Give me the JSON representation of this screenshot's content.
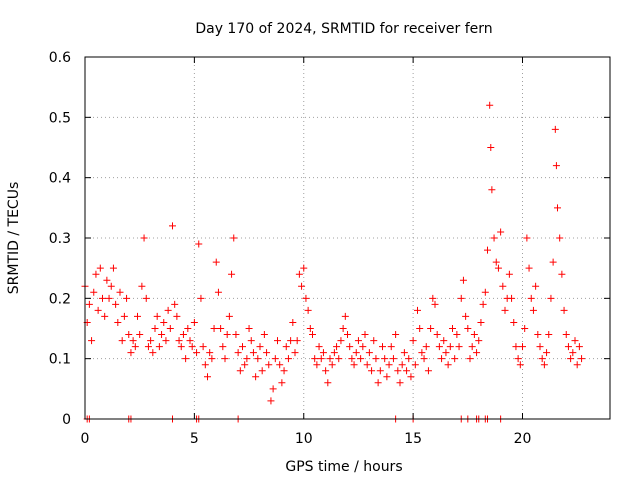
{
  "chart_data": {
    "type": "scatter",
    "title": "Day 170 of 2024, SRMTID for receiver fern",
    "xlabel": "GPS time / hours",
    "ylabel": "SRMTID / TECUs",
    "xlim": [
      0,
      24
    ],
    "ylim": [
      0,
      0.6
    ],
    "xticks": [
      0,
      5,
      10,
      15,
      20
    ],
    "yticks": [
      0,
      0.1,
      0.2,
      0.3,
      0.4,
      0.5,
      0.6
    ],
    "grid": true,
    "marker": "plus",
    "color": "#ff0000",
    "series": [
      {
        "name": "SRMTID",
        "points": [
          [
            0.0,
            0.22
          ],
          [
            0.1,
            0.16
          ],
          [
            0.2,
            0.19
          ],
          [
            0.3,
            0.13
          ],
          [
            0.4,
            0.21
          ],
          [
            0.5,
            0.24
          ],
          [
            0.6,
            0.18
          ],
          [
            0.7,
            0.25
          ],
          [
            0.8,
            0.2
          ],
          [
            0.9,
            0.17
          ],
          [
            1.0,
            0.23
          ],
          [
            1.1,
            0.2
          ],
          [
            1.2,
            0.22
          ],
          [
            1.3,
            0.25
          ],
          [
            1.4,
            0.19
          ],
          [
            1.5,
            0.16
          ],
          [
            1.6,
            0.21
          ],
          [
            1.7,
            0.13
          ],
          [
            1.8,
            0.17
          ],
          [
            1.9,
            0.2
          ],
          [
            2.0,
            0.14
          ],
          [
            2.1,
            0.11
          ],
          [
            2.2,
            0.13
          ],
          [
            2.3,
            0.12
          ],
          [
            2.4,
            0.17
          ],
          [
            2.5,
            0.14
          ],
          [
            2.6,
            0.22
          ],
          [
            2.7,
            0.3
          ],
          [
            2.8,
            0.2
          ],
          [
            2.9,
            0.12
          ],
          [
            3.0,
            0.13
          ],
          [
            3.1,
            0.11
          ],
          [
            3.2,
            0.15
          ],
          [
            3.3,
            0.17
          ],
          [
            3.4,
            0.12
          ],
          [
            3.5,
            0.14
          ],
          [
            3.6,
            0.16
          ],
          [
            3.7,
            0.13
          ],
          [
            3.8,
            0.18
          ],
          [
            3.9,
            0.15
          ],
          [
            4.0,
            0.32
          ],
          [
            4.1,
            0.19
          ],
          [
            4.2,
            0.17
          ],
          [
            4.3,
            0.13
          ],
          [
            4.4,
            0.12
          ],
          [
            4.5,
            0.14
          ],
          [
            4.6,
            0.1
          ],
          [
            4.7,
            0.15
          ],
          [
            4.8,
            0.13
          ],
          [
            4.9,
            0.12
          ],
          [
            5.0,
            0.16
          ],
          [
            5.1,
            0.11
          ],
          [
            5.2,
            0.29
          ],
          [
            5.3,
            0.2
          ],
          [
            5.4,
            0.12
          ],
          [
            5.5,
            0.09
          ],
          [
            5.6,
            0.07
          ],
          [
            5.7,
            0.11
          ],
          [
            5.8,
            0.1
          ],
          [
            5.9,
            0.15
          ],
          [
            6.0,
            0.26
          ],
          [
            6.1,
            0.21
          ],
          [
            6.2,
            0.15
          ],
          [
            6.3,
            0.12
          ],
          [
            6.4,
            0.1
          ],
          [
            6.5,
            0.14
          ],
          [
            6.6,
            0.17
          ],
          [
            6.7,
            0.24
          ],
          [
            6.8,
            0.3
          ],
          [
            6.9,
            0.14
          ],
          [
            7.0,
            0.11
          ],
          [
            7.1,
            0.08
          ],
          [
            7.2,
            0.12
          ],
          [
            7.3,
            0.09
          ],
          [
            7.4,
            0.1
          ],
          [
            7.5,
            0.15
          ],
          [
            7.6,
            0.13
          ],
          [
            7.7,
            0.11
          ],
          [
            7.8,
            0.07
          ],
          [
            7.9,
            0.1
          ],
          [
            8.0,
            0.12
          ],
          [
            8.1,
            0.08
          ],
          [
            8.2,
            0.14
          ],
          [
            8.3,
            0.11
          ],
          [
            8.4,
            0.09
          ],
          [
            8.5,
            0.03
          ],
          [
            8.6,
            0.05
          ],
          [
            8.7,
            0.1
          ],
          [
            8.8,
            0.13
          ],
          [
            8.9,
            0.09
          ],
          [
            9.0,
            0.06
          ],
          [
            9.1,
            0.08
          ],
          [
            9.2,
            0.12
          ],
          [
            9.3,
            0.1
          ],
          [
            9.4,
            0.13
          ],
          [
            9.5,
            0.16
          ],
          [
            9.6,
            0.11
          ],
          [
            9.7,
            0.13
          ],
          [
            9.8,
            0.24
          ],
          [
            9.9,
            0.22
          ],
          [
            10.0,
            0.25
          ],
          [
            10.1,
            0.2
          ],
          [
            10.2,
            0.18
          ],
          [
            10.3,
            0.15
          ],
          [
            10.4,
            0.14
          ],
          [
            10.5,
            0.1
          ],
          [
            10.6,
            0.09
          ],
          [
            10.7,
            0.12
          ],
          [
            10.8,
            0.1
          ],
          [
            10.9,
            0.11
          ],
          [
            11.0,
            0.08
          ],
          [
            11.1,
            0.06
          ],
          [
            11.2,
            0.1
          ],
          [
            11.3,
            0.09
          ],
          [
            11.4,
            0.11
          ],
          [
            11.5,
            0.12
          ],
          [
            11.6,
            0.1
          ],
          [
            11.7,
            0.13
          ],
          [
            11.8,
            0.15
          ],
          [
            11.9,
            0.17
          ],
          [
            12.0,
            0.14
          ],
          [
            12.1,
            0.12
          ],
          [
            12.2,
            0.1
          ],
          [
            12.3,
            0.09
          ],
          [
            12.4,
            0.11
          ],
          [
            12.5,
            0.13
          ],
          [
            12.6,
            0.1
          ],
          [
            12.7,
            0.12
          ],
          [
            12.8,
            0.14
          ],
          [
            12.9,
            0.09
          ],
          [
            13.0,
            0.11
          ],
          [
            13.1,
            0.08
          ],
          [
            13.2,
            0.13
          ],
          [
            13.3,
            0.1
          ],
          [
            13.4,
            0.06
          ],
          [
            13.5,
            0.08
          ],
          [
            13.6,
            0.12
          ],
          [
            13.7,
            0.1
          ],
          [
            13.8,
            0.07
          ],
          [
            13.9,
            0.09
          ],
          [
            14.0,
            0.12
          ],
          [
            14.1,
            0.1
          ],
          [
            14.2,
            0.14
          ],
          [
            14.3,
            0.08
          ],
          [
            14.4,
            0.06
          ],
          [
            14.5,
            0.09
          ],
          [
            14.6,
            0.11
          ],
          [
            14.7,
            0.08
          ],
          [
            14.8,
            0.1
          ],
          [
            14.9,
            0.07
          ],
          [
            15.0,
            0.13
          ],
          [
            15.1,
            0.09
          ],
          [
            15.2,
            0.18
          ],
          [
            15.3,
            0.15
          ],
          [
            15.4,
            0.11
          ],
          [
            15.5,
            0.1
          ],
          [
            15.6,
            0.12
          ],
          [
            15.7,
            0.08
          ],
          [
            15.8,
            0.15
          ],
          [
            15.9,
            0.2
          ],
          [
            16.0,
            0.19
          ],
          [
            16.1,
            0.14
          ],
          [
            16.2,
            0.12
          ],
          [
            16.3,
            0.1
          ],
          [
            16.4,
            0.13
          ],
          [
            16.5,
            0.11
          ],
          [
            16.6,
            0.09
          ],
          [
            16.7,
            0.12
          ],
          [
            16.8,
            0.15
          ],
          [
            16.9,
            0.1
          ],
          [
            17.0,
            0.14
          ],
          [
            17.1,
            0.12
          ],
          [
            17.2,
            0.2
          ],
          [
            17.3,
            0.23
          ],
          [
            17.4,
            0.17
          ],
          [
            17.5,
            0.15
          ],
          [
            17.6,
            0.1
          ],
          [
            17.7,
            0.12
          ],
          [
            17.8,
            0.14
          ],
          [
            17.9,
            0.11
          ],
          [
            18.0,
            0.13
          ],
          [
            18.1,
            0.16
          ],
          [
            18.2,
            0.19
          ],
          [
            18.3,
            0.21
          ],
          [
            18.4,
            0.28
          ],
          [
            18.5,
            0.52
          ],
          [
            18.55,
            0.45
          ],
          [
            18.6,
            0.38
          ],
          [
            18.7,
            0.3
          ],
          [
            18.8,
            0.26
          ],
          [
            18.9,
            0.25
          ],
          [
            19.0,
            0.31
          ],
          [
            19.1,
            0.22
          ],
          [
            19.2,
            0.18
          ],
          [
            19.3,
            0.2
          ],
          [
            19.4,
            0.24
          ],
          [
            19.5,
            0.2
          ],
          [
            19.6,
            0.16
          ],
          [
            19.7,
            0.12
          ],
          [
            19.8,
            0.1
          ],
          [
            19.9,
            0.09
          ],
          [
            20.0,
            0.12
          ],
          [
            20.1,
            0.15
          ],
          [
            20.2,
            0.3
          ],
          [
            20.3,
            0.25
          ],
          [
            20.4,
            0.2
          ],
          [
            20.5,
            0.18
          ],
          [
            20.6,
            0.22
          ],
          [
            20.7,
            0.14
          ],
          [
            20.8,
            0.12
          ],
          [
            20.9,
            0.1
          ],
          [
            21.0,
            0.09
          ],
          [
            21.1,
            0.11
          ],
          [
            21.2,
            0.14
          ],
          [
            21.3,
            0.2
          ],
          [
            21.4,
            0.26
          ],
          [
            21.5,
            0.48
          ],
          [
            21.55,
            0.42
          ],
          [
            21.6,
            0.35
          ],
          [
            21.7,
            0.3
          ],
          [
            21.8,
            0.24
          ],
          [
            21.9,
            0.18
          ],
          [
            22.0,
            0.14
          ],
          [
            22.1,
            0.12
          ],
          [
            22.2,
            0.1
          ],
          [
            22.3,
            0.11
          ],
          [
            22.4,
            0.13
          ],
          [
            22.5,
            0.09
          ],
          [
            22.6,
            0.12
          ],
          [
            22.7,
            0.1
          ]
        ]
      }
    ],
    "zero_markers_x": [
      0.1,
      0.2,
      2.0,
      2.1,
      4.0,
      5.1,
      5.2,
      7.0,
      14.2,
      15.0,
      17.2,
      17.5,
      17.9,
      18.0,
      18.3,
      18.4,
      19.0
    ]
  }
}
